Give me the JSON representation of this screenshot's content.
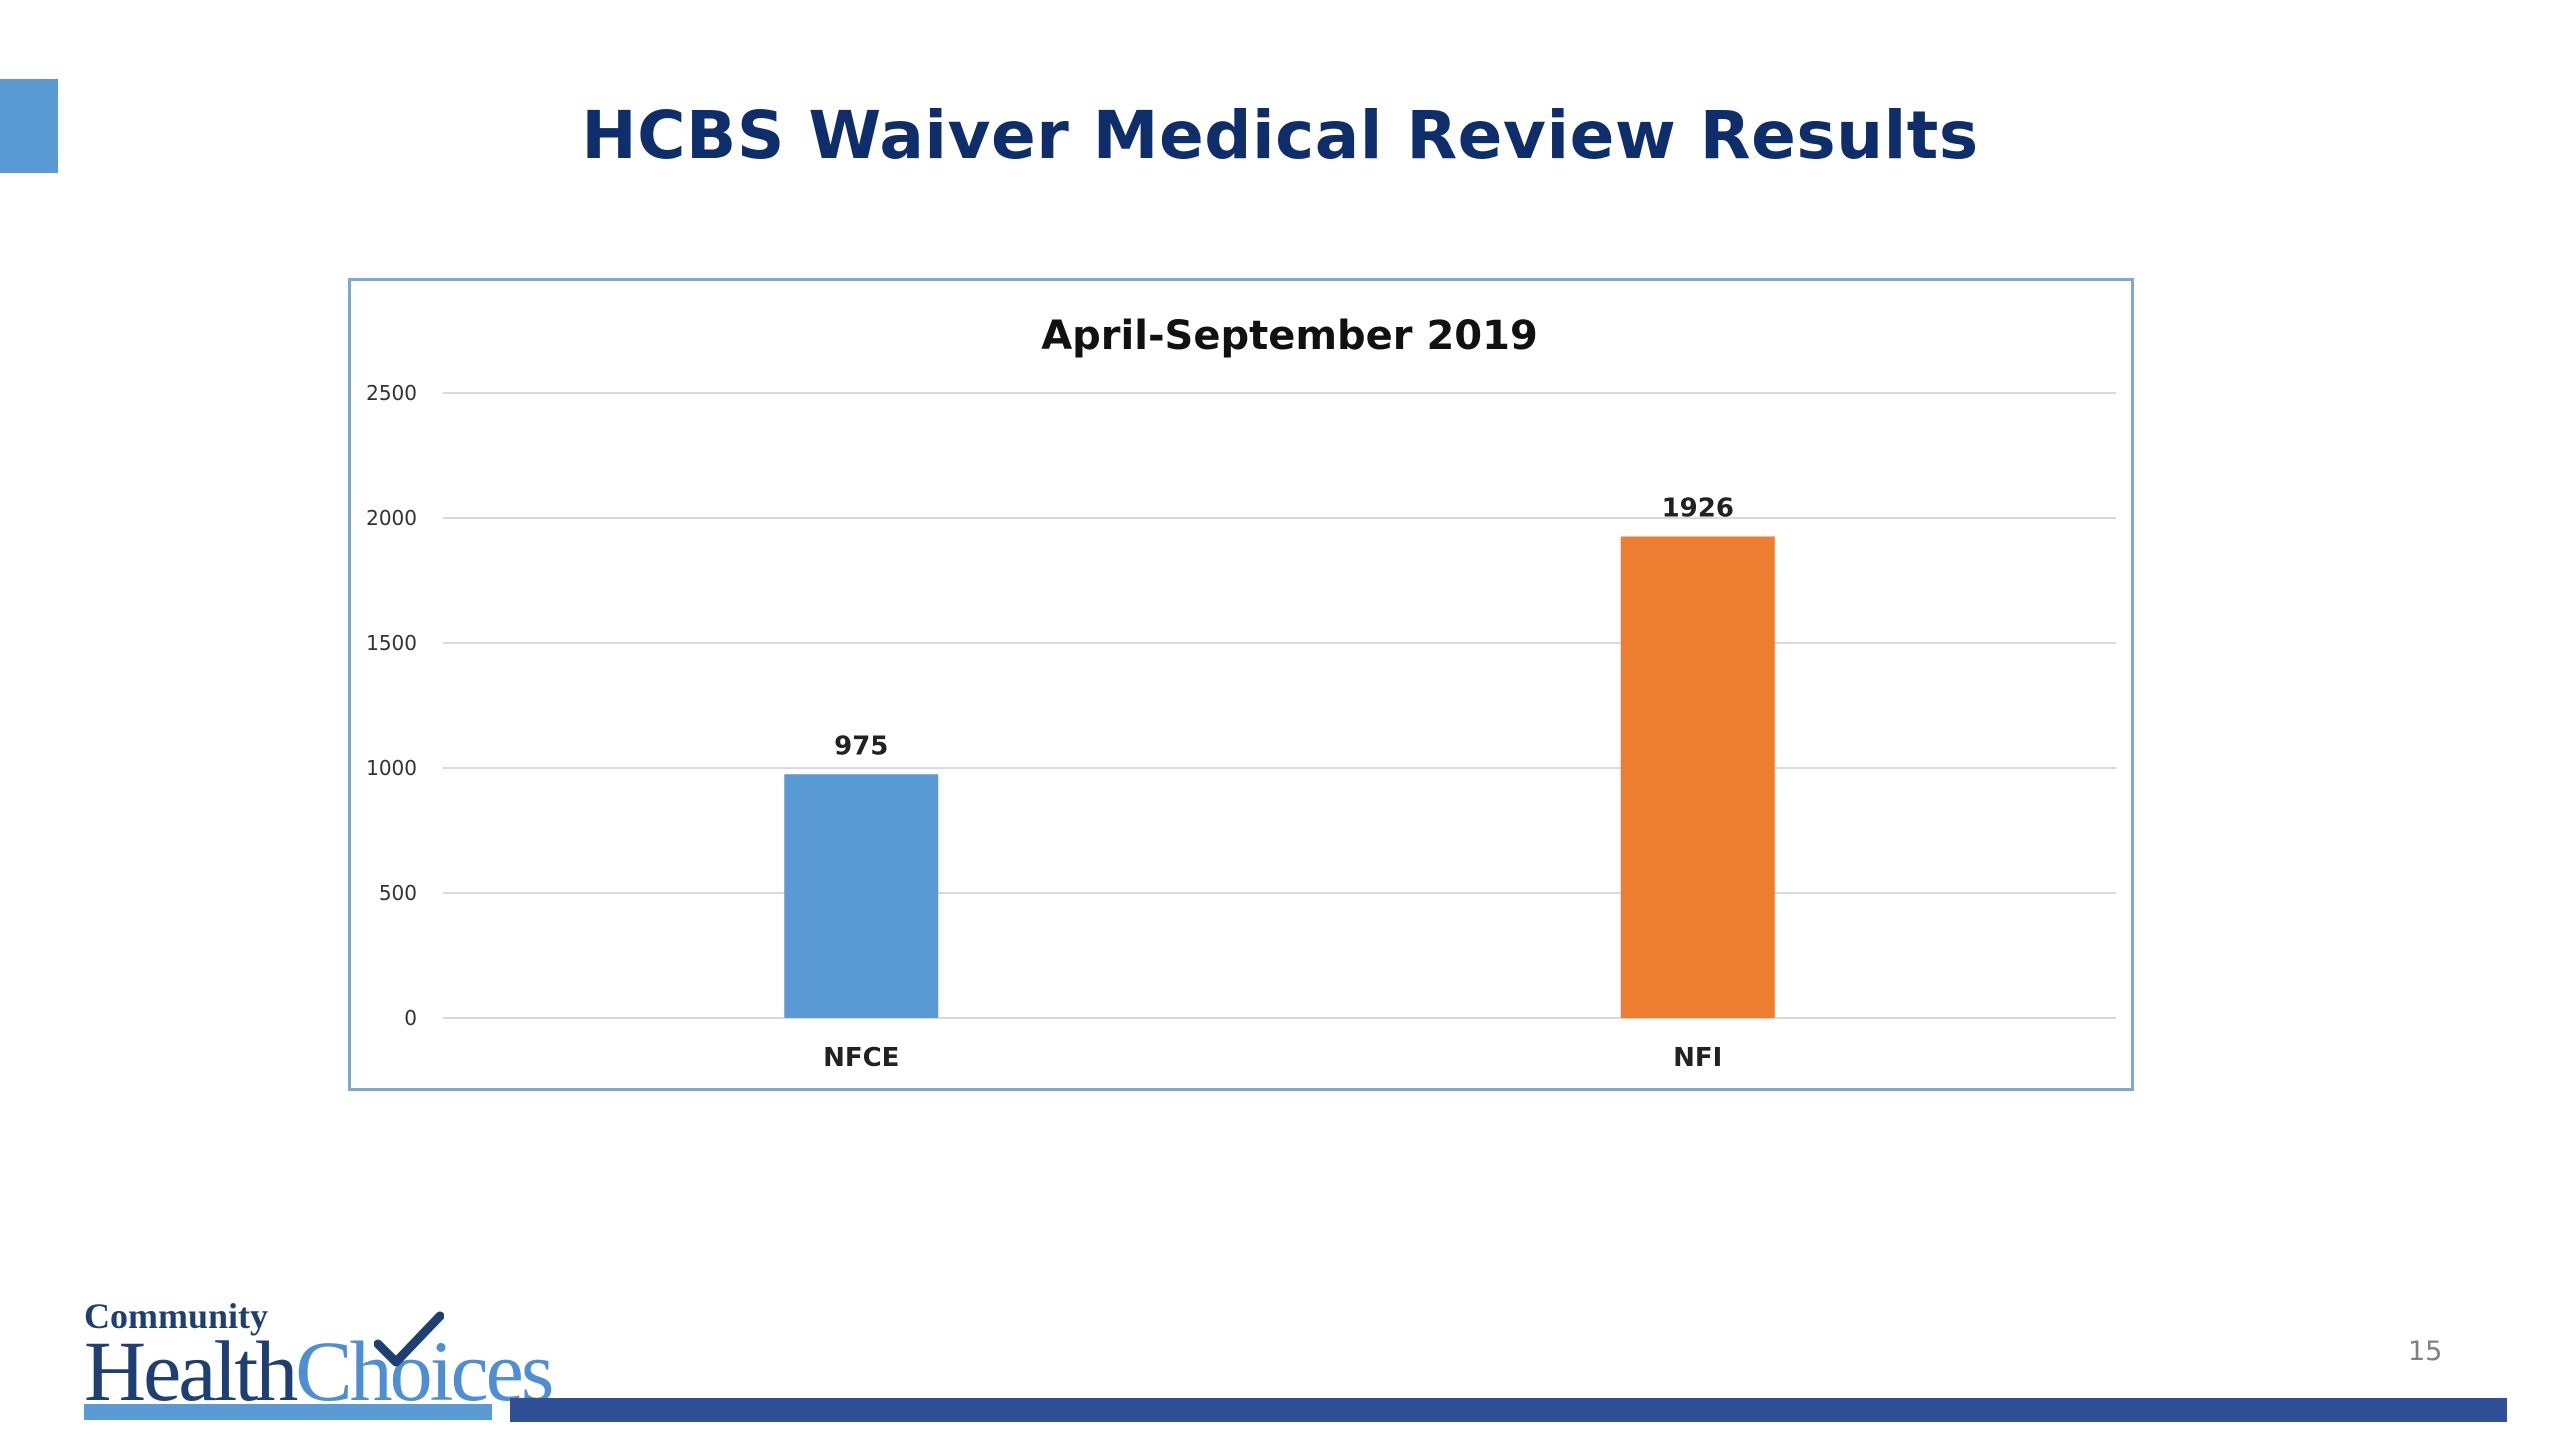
{
  "slide": {
    "title": "HCBS Waiver Medical Review Results",
    "page_number": "15"
  },
  "logo": {
    "line1": "Community",
    "line2_part1": "Health",
    "line2_part2": "Choices"
  },
  "colors": {
    "title": "#0E2D6B",
    "accent": "#5B9BD5",
    "footer_bar": "#2F4F96",
    "bar_nfce": "#5B9BD5",
    "bar_nfi": "#ED7D31"
  },
  "chart_data": {
    "type": "bar",
    "title": "April-September 2019",
    "categories": [
      "NFCE",
      "NFI"
    ],
    "values": [
      975,
      1926
    ],
    "bar_colors": [
      "#5B9BD5",
      "#ED7D31"
    ],
    "ylim": [
      0,
      2500
    ],
    "yticks": [
      0,
      500,
      1000,
      1500,
      2000,
      2500
    ],
    "xlabel": "",
    "ylabel": "",
    "grid": true,
    "data_labels": true,
    "legend": "none"
  }
}
